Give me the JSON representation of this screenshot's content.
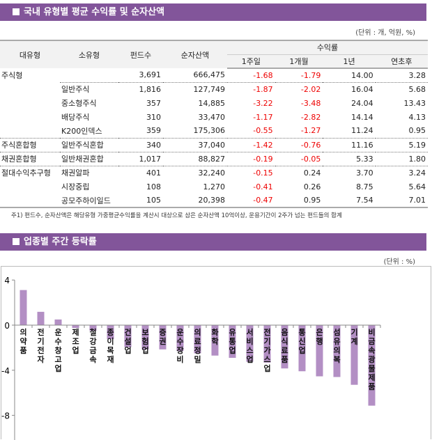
{
  "section1": {
    "title": "국내 유형별 평균 수익률 및 순자산액",
    "unit": "(단위 : 개, 억원, %)",
    "headers": {
      "major": "대유형",
      "minor": "소유형",
      "funds": "펀드수",
      "assets": "순자산액",
      "returns": "수익률",
      "w1": "1주일",
      "m1": "1개월",
      "y1": "1년",
      "ytd": "연초후"
    },
    "rows": [
      {
        "major": "주식형",
        "minor": "",
        "funds": "3,691",
        "assets": "666,475",
        "w1": "-1.68",
        "m1": "-1.79",
        "y1": "14.00",
        "ytd": "3.28"
      },
      {
        "major": "",
        "minor": "일반주식",
        "funds": "1,816",
        "assets": "127,749",
        "w1": "-1.87",
        "m1": "-2.02",
        "y1": "16.04",
        "ytd": "5.68"
      },
      {
        "major": "",
        "minor": "중소형주식",
        "funds": "357",
        "assets": "14,885",
        "w1": "-3.22",
        "m1": "-3.48",
        "y1": "24.04",
        "ytd": "13.43"
      },
      {
        "major": "",
        "minor": "배당주식",
        "funds": "310",
        "assets": "33,470",
        "w1": "-1.17",
        "m1": "-2.82",
        "y1": "14.14",
        "ytd": "4.13"
      },
      {
        "major": "",
        "minor": "K200인덱스",
        "funds": "359",
        "assets": "175,306",
        "w1": "-0.55",
        "m1": "-1.27",
        "y1": "11.24",
        "ytd": "0.95"
      },
      {
        "major": "주식혼합형",
        "minor": "일반주식혼합",
        "funds": "340",
        "assets": "37,040",
        "w1": "-1.42",
        "m1": "-0.76",
        "y1": "11.16",
        "ytd": "5.19"
      },
      {
        "major": "채권혼합형",
        "minor": "일반채권혼합",
        "funds": "1,017",
        "assets": "88,827",
        "w1": "-0.19",
        "m1": "-0.05",
        "y1": "5.33",
        "ytd": "1.80"
      },
      {
        "major": "절대수익추구형",
        "minor": "채권알파",
        "funds": "401",
        "assets": "32,240",
        "w1": "-0.15",
        "m1": "0.24",
        "y1": "3.70",
        "ytd": "3.24"
      },
      {
        "major": "",
        "minor": "시장중립",
        "funds": "108",
        "assets": "1,270",
        "w1": "-0.41",
        "m1": "0.26",
        "y1": "8.75",
        "ytd": "5.64"
      },
      {
        "major": "",
        "minor": "공모주하이일드",
        "funds": "105",
        "assets": "20,398",
        "w1": "-0.47",
        "m1": "0.95",
        "y1": "7.54",
        "ytd": "7.01"
      }
    ],
    "note": "주1) 펀드수, 순자산액은 해당유형 가중평균수익률을 계산시 대상으로 삼은 순자산액 10억이상, 운용기간이 2주가 넘는 펀드들의 합계"
  },
  "section2": {
    "title": "업종별 주간 등락률",
    "unit": "(단위 : %)"
  },
  "colors": {
    "header_bar": "#82559a",
    "bar": "#b38fc4",
    "negative": "#ee0000"
  },
  "chart_data": {
    "type": "bar",
    "ylim": [
      -8,
      4
    ],
    "yticks": [
      "4",
      "0",
      "-4",
      "-8"
    ],
    "grid": false,
    "categories": [
      "의약품",
      "전기전자",
      "운수창고업",
      "제조업",
      "철강금속",
      "종이목재",
      "건설업",
      "보험업",
      "증권",
      "운수장비",
      "의료정밀",
      "화학",
      "유통업",
      "서비스업",
      "전기가스업",
      "음식료품",
      "통신업",
      "은행",
      "섬유의복",
      "기계",
      "비금속광물제품"
    ],
    "values": [
      3.11,
      1.18,
      0.5,
      -0.25,
      -0.5,
      -1.24,
      -1.95,
      -2.15,
      -2.15,
      -2.3,
      -2.5,
      -2.7,
      -2.9,
      -3.25,
      -3.32,
      -3.84,
      -4.09,
      -4.54,
      -4.6,
      -5.29,
      -7.14
    ]
  }
}
